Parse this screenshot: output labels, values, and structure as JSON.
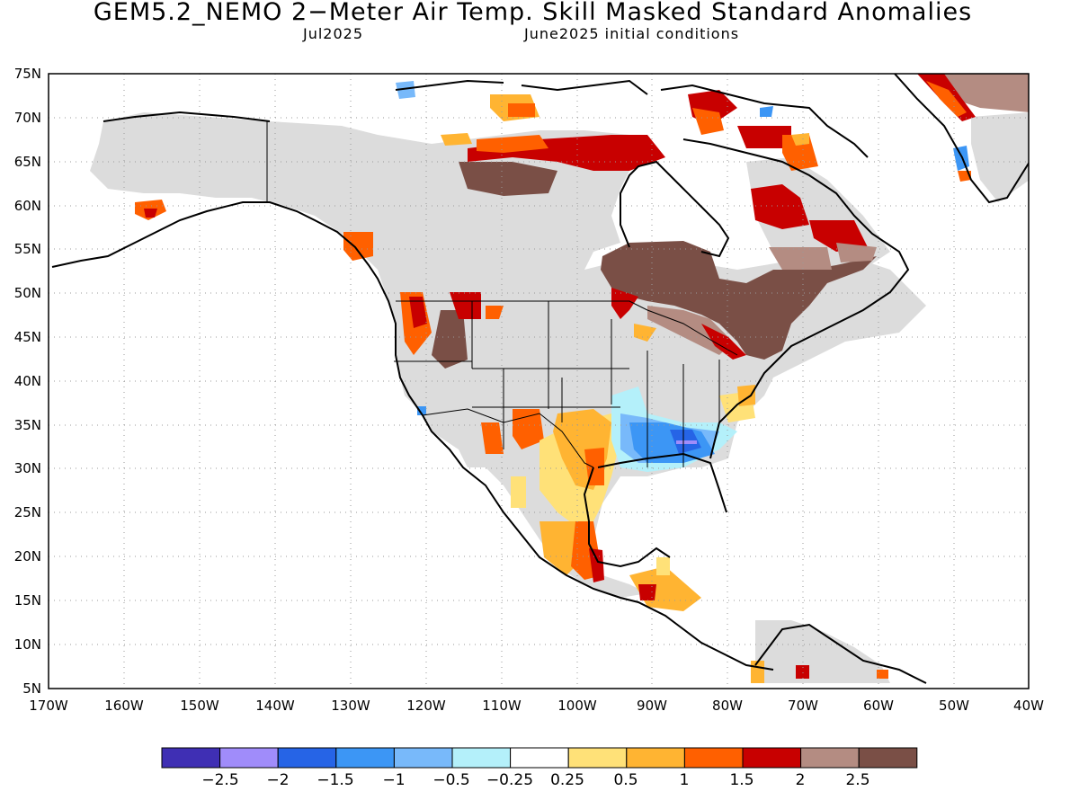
{
  "header": {
    "title": "GEM5.2_NEMO 2−Meter Air Temp. Skill Masked Standard Anomalies",
    "valid_month": "Jul2025",
    "init": "June2025 initial conditions"
  },
  "axes": {
    "lat_labels": [
      "75N",
      "70N",
      "65N",
      "60N",
      "55N",
      "50N",
      "45N",
      "40N",
      "35N",
      "30N",
      "25N",
      "20N",
      "15N",
      "10N",
      "5N"
    ],
    "lon_labels": [
      "170W",
      "160W",
      "150W",
      "140W",
      "130W",
      "120W",
      "110W",
      "100W",
      "90W",
      "80W",
      "70W",
      "60W",
      "50W",
      "40W"
    ]
  },
  "colorbar": {
    "colors": [
      "#3f2fb4",
      "#a08cfa",
      "#2664e6",
      "#3c96f5",
      "#78b9fa",
      "#b4f0fa",
      "#ffffff",
      "#ffe178",
      "#ffb432",
      "#ff6000",
      "#c80000",
      "#b48c82",
      "#7a4f46"
    ],
    "labels": [
      "−2.5",
      "−2",
      "−1.5",
      "−1",
      "−0.5",
      "−0.25",
      "0.25",
      "0.5",
      "1",
      "1.5",
      "2",
      "2.5"
    ]
  },
  "regions": [
    {
      "name": "interior-gray-mask",
      "color": "#dcdcdc"
    },
    {
      "name": "hudson-bay-ontario-anomaly",
      "color": "#7a4f46"
    },
    {
      "name": "southeast-us-negative",
      "color": "#3c96f5"
    },
    {
      "name": "texas-mexico-positive",
      "color": "#ffb432"
    },
    {
      "name": "arctic-positive",
      "color": "#c80000"
    },
    {
      "name": "greenland-anomaly",
      "color": "#b48c82"
    }
  ]
}
